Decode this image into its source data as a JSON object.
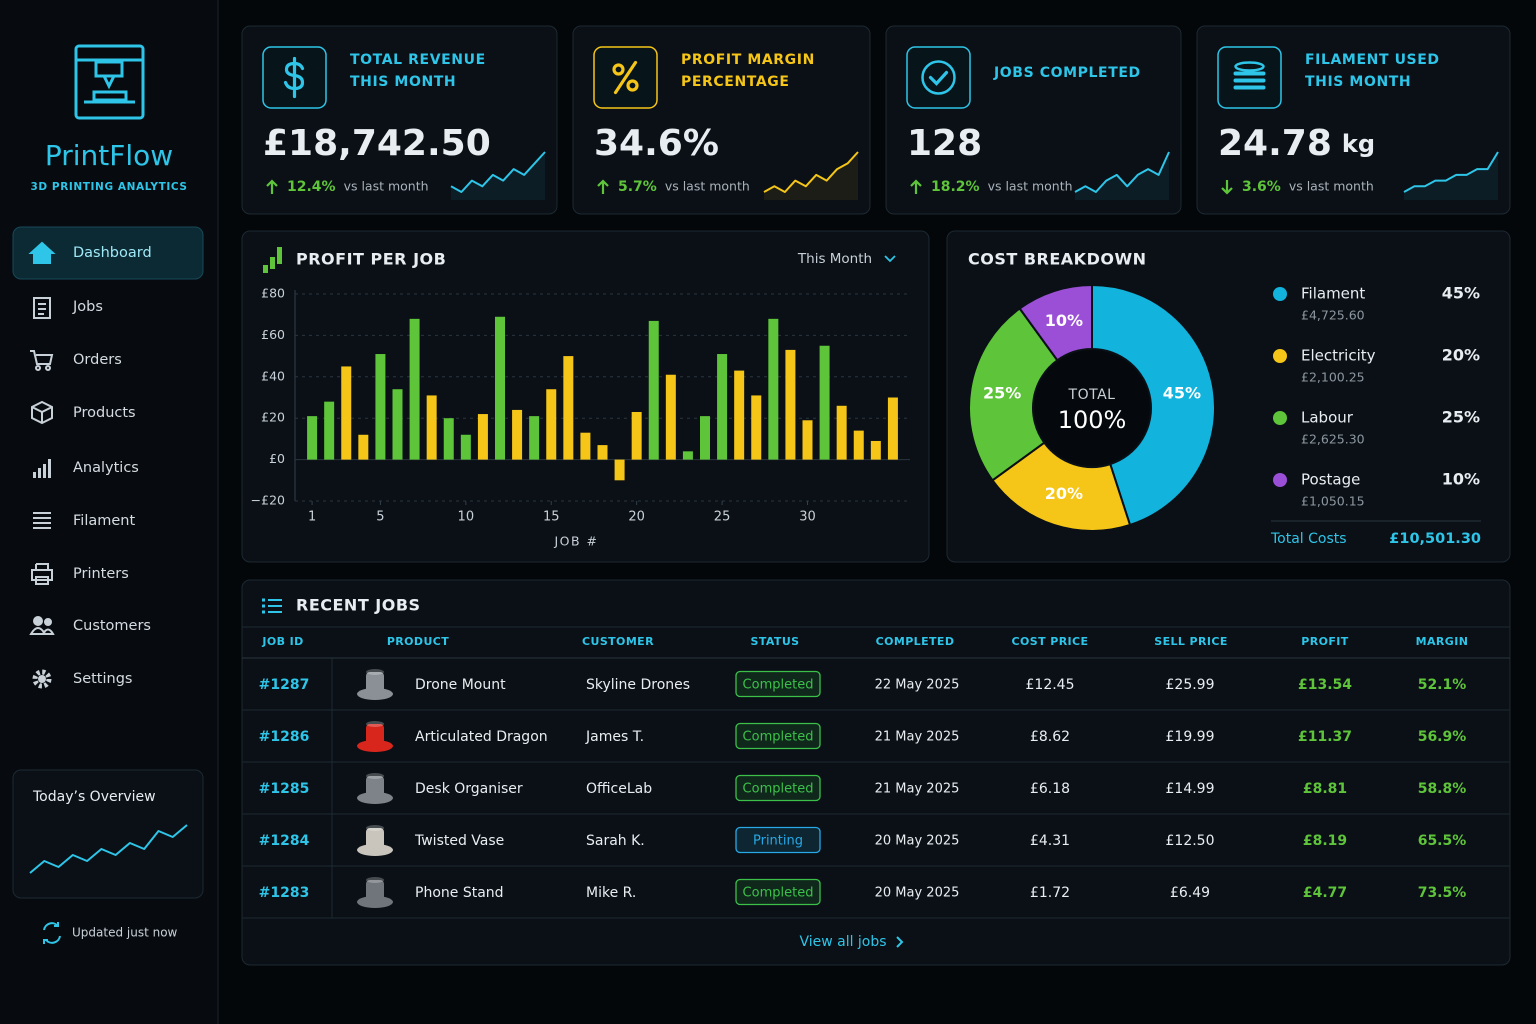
{
  "sidebar": {
    "brand": "PrintFlow",
    "tagline": "3D PRINTING ANALYTICS",
    "nav": [
      "Dashboard",
      "Jobs",
      "Orders",
      "Products",
      "Analytics",
      "Filament",
      "Printers",
      "Customers",
      "Settings"
    ],
    "active": 0,
    "overview": {
      "title": "Today’s Overview",
      "values": [
        2,
        4,
        3,
        5,
        4,
        6,
        5,
        7,
        6,
        9,
        8,
        10
      ]
    },
    "updated": "Updated just now"
  },
  "kpis": [
    {
      "title": [
        "TOTAL REVENUE",
        "THIS MONTH"
      ],
      "value": "£18,742.50",
      "change": "12.4%",
      "direction": "up",
      "compare": "vs last month",
      "accent": "#2ec5e8",
      "trend": [
        3,
        2,
        4,
        3,
        5,
        4,
        6,
        5,
        7,
        9
      ]
    },
    {
      "title": [
        "PROFIT MARGIN",
        "PERCENTAGE"
      ],
      "value": "34.6%",
      "change": "5.7%",
      "direction": "up",
      "compare": "vs last month",
      "accent": "#f5c518",
      "trend": [
        2,
        3,
        2,
        4,
        3,
        5,
        4,
        6,
        7,
        9
      ]
    },
    {
      "title": [
        "JOBS COMPLETED"
      ],
      "value": "128",
      "change": "18.2%",
      "direction": "up",
      "compare": "vs last month",
      "accent": "#2ec5e8",
      "trend": [
        2,
        3,
        2,
        4,
        5,
        3,
        5,
        6,
        5,
        9
      ]
    },
    {
      "title": [
        "FILAMENT USED",
        "THIS MONTH"
      ],
      "value": "24.78",
      "unit": "kg",
      "change": "3.6%",
      "direction": "down",
      "compare": "vs last month",
      "accent": "#2ec5e8",
      "trend": [
        2,
        3,
        3,
        4,
        4,
        5,
        5,
        6,
        6,
        9
      ]
    }
  ],
  "chart_data": [
    {
      "type": "bar",
      "title": "PROFIT PER JOB",
      "period": "This Month",
      "x_label": "JOB #",
      "x": [
        1,
        2,
        3,
        4,
        5,
        6,
        7,
        8,
        9,
        10,
        11,
        12,
        13,
        14,
        15,
        16,
        17,
        18,
        19,
        20,
        21,
        22,
        23,
        24,
        25,
        26,
        27,
        28,
        29,
        30,
        31,
        32,
        33,
        34,
        35
      ],
      "values": [
        21,
        28,
        45,
        12,
        51,
        34,
        68,
        31,
        20,
        12,
        22,
        69,
        24,
        21,
        34,
        50,
        13,
        7,
        -10,
        23,
        67,
        41,
        4,
        21,
        51,
        43,
        31,
        68,
        53,
        19,
        55,
        26,
        14,
        9,
        30
      ],
      "colors": [
        "#5ec43a",
        "#5ec43a",
        "#f5c518",
        "#f5c518",
        "#5ec43a",
        "#5ec43a",
        "#5ec43a",
        "#f5c518",
        "#5ec43a",
        "#5ec43a",
        "#f5c518",
        "#5ec43a",
        "#f5c518",
        "#5ec43a",
        "#f5c518",
        "#f5c518",
        "#f5c518",
        "#f5c518",
        "#f5c518",
        "#f5c518",
        "#5ec43a",
        "#f5c518",
        "#5ec43a",
        "#5ec43a",
        "#5ec43a",
        "#f5c518",
        "#f5c518",
        "#5ec43a",
        "#f5c518",
        "#f5c518",
        "#5ec43a",
        "#f5c518",
        "#f5c518",
        "#f5c518",
        "#f5c518"
      ],
      "xlim": [
        0,
        36
      ],
      "xticks": [
        1,
        5,
        10,
        15,
        20,
        25,
        30
      ],
      "ylim": [
        -20,
        80
      ],
      "yticks": [
        {
          "value": -20,
          "label": "−£20"
        },
        {
          "value": 0,
          "label": "£0"
        },
        {
          "value": 20,
          "label": "£20"
        },
        {
          "value": 40,
          "label": "£40"
        },
        {
          "value": 60,
          "label": "£60"
        },
        {
          "value": 80,
          "label": "£80"
        }
      ],
      "grid": true
    },
    {
      "type": "pie",
      "title": "COST BREAKDOWN",
      "categories": [
        "Filament",
        "Electricity",
        "Labour",
        "Postage"
      ],
      "values": [
        45,
        20,
        25,
        10
      ],
      "value_labels": [
        "45%",
        "20%",
        "25%",
        "10%"
      ],
      "amounts": [
        "£4,725.60",
        "£2,100.25",
        "£2,625.30",
        "£1,050.15"
      ],
      "colors": [
        "#12b3dc",
        "#f5c518",
        "#5ec43a",
        "#9a4fd6"
      ],
      "center_label": "TOTAL",
      "center_value": "100%",
      "total_label": "Total Costs",
      "total_value": "£10,501.30"
    }
  ],
  "table": {
    "title": "RECENT JOBS",
    "columns": [
      "JOB ID",
      "PRODUCT",
      "CUSTOMER",
      "STATUS",
      "COMPLETED",
      "COST PRICE",
      "SELL PRICE",
      "PROFIT",
      "MARGIN"
    ],
    "rows": [
      [
        "#1287",
        "Drone Mount",
        "Skyline Drones",
        "Completed",
        "22 May 2025",
        "£12.45",
        "£25.99",
        "£13.54",
        "52.1%"
      ],
      [
        "#1286",
        "Articulated Dragon",
        "James T.",
        "Completed",
        "21 May 2025",
        "£8.62",
        "£19.99",
        "£11.37",
        "56.9%"
      ],
      [
        "#1285",
        "Desk Organiser",
        "OfficeLab",
        "Completed",
        "21 May 2025",
        "£6.18",
        "£14.99",
        "£8.81",
        "58.8%"
      ],
      [
        "#1284",
        "Twisted Vase",
        "Sarah K.",
        "Printing",
        "20 May 2025",
        "£4.31",
        "£12.50",
        "£8.19",
        "65.5%"
      ],
      [
        "#1283",
        "Phone Stand",
        "Mike R.",
        "Completed",
        "20 May 2025",
        "£1.72",
        "£6.49",
        "£4.77",
        "73.5%"
      ]
    ],
    "status_colors": [
      "#3cc04a",
      "#3cc04a",
      "#3cc04a",
      "#27a9e6",
      "#3cc04a"
    ],
    "thumb_colors": [
      "#8a9096",
      "#d9261c",
      "#7d8388",
      "#c9c4bc",
      "#6f757b"
    ],
    "footer": "View all jobs"
  }
}
